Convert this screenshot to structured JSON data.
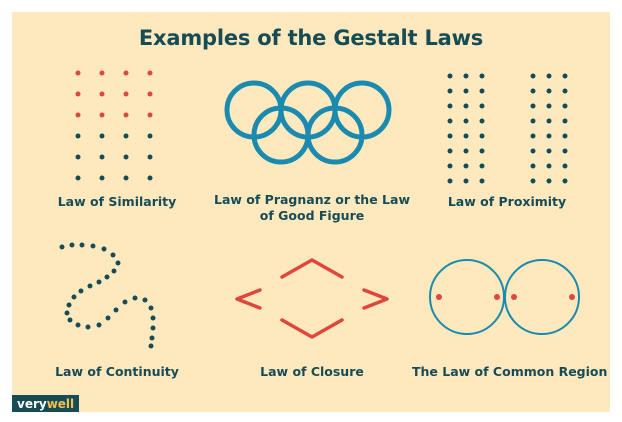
{
  "title": "Examples of the Gestalt Laws",
  "labels": {
    "similarity": "Law of Similarity",
    "pragnanz": "Law of Pragnanz or the Law of Good Figure",
    "proximity": "Law of Proximity",
    "continuity": "Law of Continuity",
    "closure": "Law of Closure",
    "common_region": "The Law of Common Region"
  },
  "brand": {
    "part1": "very",
    "part2": "well"
  },
  "colors": {
    "background": "#fde9bd",
    "teal": "#1a8ab0",
    "dark": "#174c57",
    "red": "#e0463c",
    "brand_accent": "#f2c14e"
  }
}
